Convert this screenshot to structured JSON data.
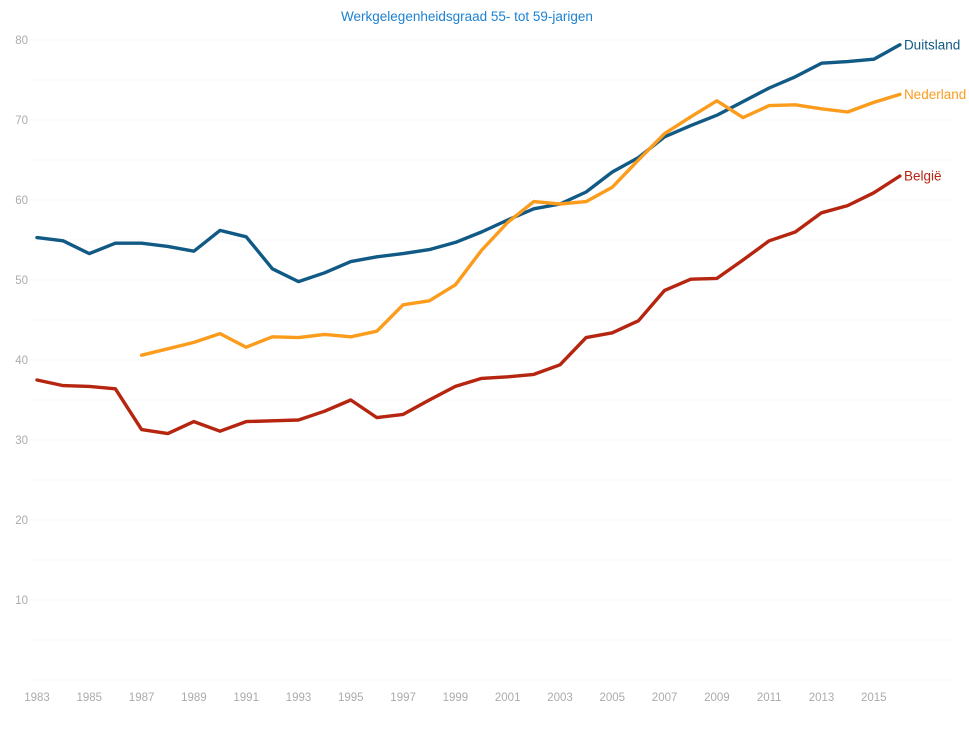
{
  "chart_data": {
    "type": "line",
    "title": "Werkgelegenheidsgraad 55- tot 59-jarigen",
    "title_color": "#1d82d2",
    "axis_label_color": "#ababab",
    "gridline_color": "#e4e4e4",
    "background_color": "#ffffff",
    "xlim": [
      1983,
      2016
    ],
    "ylim": [
      0,
      80
    ],
    "grid": "horizontal dotted lines every 5 units, labels every 10",
    "legend_position": "labels at right end of each line",
    "y_tick_labels": [
      80,
      70,
      60,
      50,
      40,
      30,
      20,
      10
    ],
    "x_tick_labels": [
      "1983",
      "1985",
      "1987",
      "1989",
      "1991",
      "1993",
      "1995",
      "1997",
      "1999",
      "2001",
      "2003",
      "2005",
      "2007",
      "2009",
      "2011",
      "2013",
      "2015"
    ],
    "series": [
      {
        "name": "Duitsland",
        "color": "#115a85",
        "start_year": 1983,
        "values": [
          55.3,
          54.9,
          53.3,
          54.6,
          54.6,
          54.2,
          53.6,
          56.2,
          55.4,
          51.4,
          49.8,
          50.9,
          52.3,
          52.9,
          53.3,
          53.8,
          54.7,
          56.0,
          57.5,
          58.9,
          59.5,
          61.0,
          63.5,
          65.3,
          67.9,
          69.3,
          70.6,
          72.3,
          74.0,
          75.4,
          77.1,
          77.3,
          77.6,
          79.4
        ]
      },
      {
        "name": "Nederland",
        "color": "#fb9c1d",
        "start_year": 1987,
        "values": [
          40.6,
          41.4,
          42.2,
          43.3,
          41.6,
          42.9,
          42.8,
          43.2,
          42.9,
          43.6,
          46.9,
          47.4,
          49.4,
          53.7,
          57.2,
          59.8,
          59.5,
          59.8,
          61.6,
          65.0,
          68.3,
          70.4,
          72.4,
          70.3,
          71.8,
          71.9,
          71.4,
          71.0,
          72.2,
          73.2
        ]
      },
      {
        "name": "België",
        "color": "#b5250f",
        "start_year": 1983,
        "values": [
          37.5,
          36.8,
          36.7,
          36.4,
          31.3,
          30.8,
          32.3,
          31.1,
          32.3,
          32.4,
          32.5,
          33.6,
          35.0,
          32.8,
          33.2,
          35.0,
          36.7,
          37.7,
          37.9,
          38.2,
          39.4,
          42.8,
          43.4,
          44.9,
          48.7,
          50.1,
          50.2,
          52.5,
          54.9,
          56.0,
          58.4,
          59.3,
          60.9,
          63.0
        ]
      }
    ]
  }
}
